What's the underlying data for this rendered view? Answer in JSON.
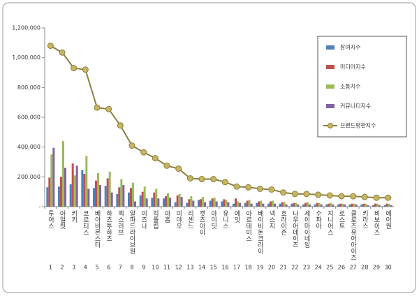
{
  "chart_data": {
    "type": "bar",
    "categories": [
      "투어스",
      "아일릿",
      "키키",
      "코르티스",
      "베이비몬스터",
      "하츠투하츠",
      "엑스러브",
      "알파드라이브원",
      "이즈나",
      "킥플립",
      "아홉",
      "미야오",
      "리센느",
      "캣츠아이",
      "아이딧",
      "유니스",
      "에잇",
      "아르테미스",
      "베이비돈크라이",
      "넥스지",
      "호라이즌",
      "나우어데이즈",
      "세이마이네임",
      "수파아",
      "지니어스",
      "로스트",
      "클로즈유어아이즈",
      "키라스",
      "비보이즈",
      "에이원"
    ],
    "ranks": [
      1,
      2,
      3,
      4,
      5,
      6,
      7,
      8,
      9,
      10,
      11,
      12,
      13,
      14,
      15,
      16,
      17,
      18,
      19,
      20,
      21,
      22,
      23,
      24,
      25,
      26,
      27,
      28,
      29,
      30
    ],
    "series": [
      {
        "name": "참여지수",
        "color": "#4f81bd",
        "values": [
          130000,
          135000,
          150000,
          245000,
          125000,
          140000,
          85000,
          95000,
          75000,
          60000,
          55000,
          30000,
          25000,
          45000,
          40000,
          35000,
          20000,
          25000,
          25000,
          20000,
          20000,
          20000,
          15000,
          15000,
          15000,
          15000,
          15000,
          15000,
          10000,
          10000
        ]
      },
      {
        "name": "미디어지수",
        "color": "#c0504d",
        "values": [
          195000,
          200000,
          290000,
          220000,
          175000,
          190000,
          130000,
          125000,
          100000,
          95000,
          70000,
          75000,
          50000,
          50000,
          55000,
          50000,
          55000,
          40000,
          35000,
          35000,
          30000,
          25000,
          25000,
          25000,
          20000,
          20000,
          20000,
          20000,
          20000,
          20000
        ]
      },
      {
        "name": "소통지수",
        "color": "#9bbb59",
        "values": [
          350000,
          440000,
          210000,
          340000,
          225000,
          235000,
          185000,
          160000,
          135000,
          120000,
          90000,
          85000,
          70000,
          65000,
          60000,
          45000,
          35000,
          45000,
          40000,
          40000,
          30000,
          25000,
          30000,
          25000,
          25000,
          20000,
          20000,
          20000,
          20000,
          20000
        ]
      },
      {
        "name": "커뮤니티지수",
        "color": "#8064a2",
        "values": [
          395000,
          260000,
          275000,
          120000,
          145000,
          95000,
          145000,
          35000,
          55000,
          55000,
          60000,
          65000,
          40000,
          30000,
          35000,
          30000,
          25000,
          20000,
          20000,
          20000,
          15000,
          15000,
          15000,
          15000,
          15000,
          15000,
          15000,
          10000,
          10000,
          10000
        ]
      },
      {
        "name": "브랜드평판지수",
        "color": "#8b8040",
        "type": "line",
        "values": [
          1080000,
          1035000,
          930000,
          920000,
          665000,
          655000,
          545000,
          410000,
          365000,
          325000,
          275000,
          255000,
          190000,
          185000,
          185000,
          165000,
          135000,
          130000,
          120000,
          115000,
          95000,
          85000,
          85000,
          80000,
          75000,
          70000,
          70000,
          65000,
          60000,
          60000
        ]
      }
    ],
    "ylim": [
      0,
      1200000
    ],
    "yticks": [
      {
        "value": 0,
        "label": "-"
      },
      {
        "value": 200000,
        "label": "200,000"
      },
      {
        "value": 400000,
        "label": "400,000"
      },
      {
        "value": 600000,
        "label": "600,000"
      },
      {
        "value": 800000,
        "label": "800,000"
      },
      {
        "value": 1000000,
        "label": "1,000,000"
      },
      {
        "value": 1200000,
        "label": "1,200,000"
      }
    ],
    "legend": "top-right"
  }
}
